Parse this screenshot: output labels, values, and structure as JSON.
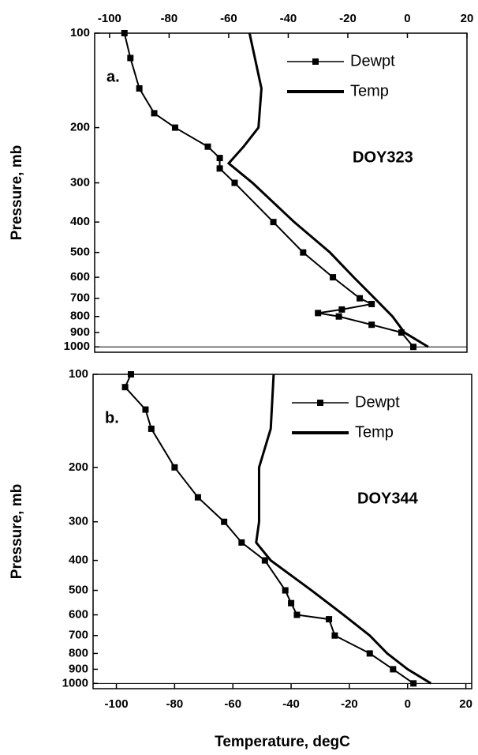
{
  "chart_data": [
    {
      "type": "line",
      "ylabel": "Pressure, mb",
      "annotations": [
        "a.",
        "DOY323"
      ],
      "xaxis_position": "top",
      "ylog": true,
      "yinverted": true,
      "legend": "upper right",
      "xlim": [
        -105,
        20
      ],
      "xticks": [
        -100,
        -80,
        -60,
        -40,
        -20,
        0,
        20
      ],
      "ylim": [
        100,
        1040
      ],
      "yticks": [
        100,
        200,
        300,
        400,
        500,
        600,
        700,
        800,
        900,
        1000
      ],
      "series": [
        {
          "name": "Dewpt",
          "color": "#000000",
          "style": "markers",
          "x": [
            -95,
            -93,
            -90,
            -85,
            -78,
            -67,
            -63,
            -63,
            -58,
            -45,
            -35,
            -25,
            -16,
            -12,
            -22,
            -30,
            -23,
            -12,
            -2,
            2
          ],
          "y": [
            100,
            120,
            150,
            180,
            200,
            230,
            250,
            270,
            300,
            400,
            500,
            600,
            700,
            730,
            760,
            780,
            800,
            850,
            900,
            1000
          ]
        },
        {
          "name": "Temp",
          "color": "#000000",
          "style": "thick",
          "x": [
            -53,
            -49,
            -50,
            -55,
            -60,
            -52,
            -38,
            -26,
            -18,
            -11,
            -5,
            -1,
            7
          ],
          "y": [
            100,
            150,
            200,
            230,
            260,
            300,
            400,
            500,
            600,
            700,
            800,
            900,
            1000
          ]
        }
      ]
    },
    {
      "type": "line",
      "ylabel": "Pressure, mb",
      "xlabel": "Temperature, degC",
      "annotations": [
        "b.",
        "DOY344"
      ],
      "xaxis_position": "bottom",
      "ylog": true,
      "yinverted": true,
      "legend": "upper right",
      "xlim": [
        -108,
        22
      ],
      "xticks": [
        -100,
        -80,
        -60,
        -40,
        -20,
        0,
        20
      ],
      "ylim": [
        100,
        1040
      ],
      "yticks": [
        100,
        200,
        300,
        400,
        500,
        600,
        700,
        800,
        900,
        1000
      ],
      "series": [
        {
          "name": "Dewpt",
          "color": "#000000",
          "style": "markers",
          "x": [
            -95,
            -97,
            -90,
            -88,
            -80,
            -72,
            -63,
            -57,
            -49,
            -42,
            -40,
            -38,
            -27,
            -25,
            -13,
            -5,
            2
          ],
          "y": [
            100,
            110,
            130,
            150,
            200,
            250,
            300,
            350,
            400,
            500,
            550,
            600,
            620,
            700,
            800,
            900,
            1000
          ]
        },
        {
          "name": "Temp",
          "color": "#000000",
          "style": "thick",
          "x": [
            -46,
            -47,
            -51,
            -51,
            -52,
            -47,
            -33,
            -22,
            -13,
            -7,
            0,
            8
          ],
          "y": [
            100,
            150,
            200,
            300,
            350,
            400,
            500,
            600,
            700,
            800,
            900,
            1000
          ]
        }
      ]
    }
  ]
}
